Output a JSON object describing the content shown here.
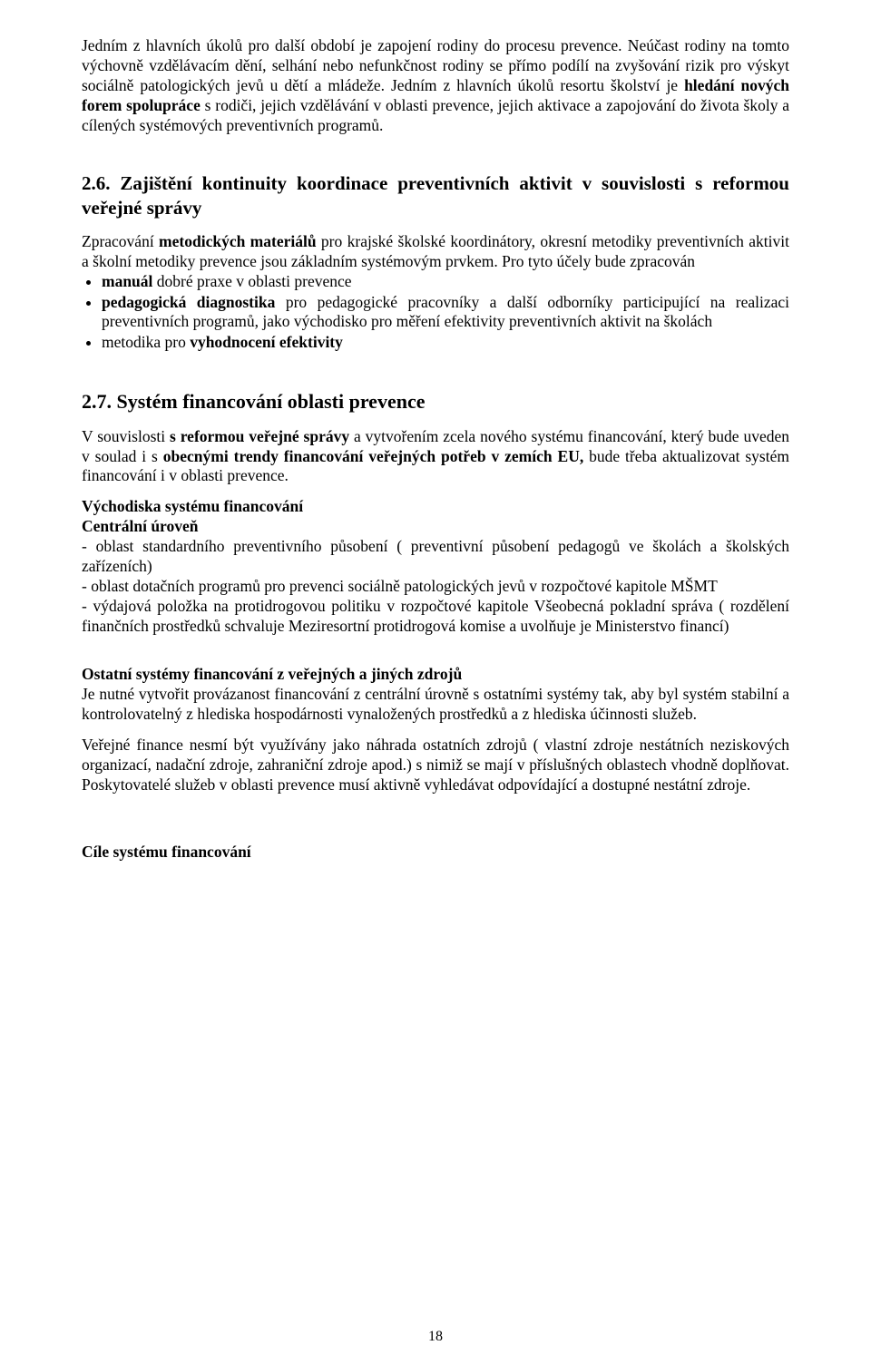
{
  "para1": {
    "run1": "Jedním z hlavních úkolů pro další období je zapojení rodiny do procesu prevence. Neúčast rodiny na tomto výchovně vzdělávacím dění, selhání nebo nefunkčnost rodiny se přímo podílí na zvyšování rizik pro výskyt sociálně patologických jevů u dětí a mládeže. Jedním z hlavních úkolů resortu školství je ",
    "run2_bold": "hledání nových forem spolupráce",
    "run3": " s rodiči,  jejich vzdělávání v oblasti prevence, jejich  aktivace a zapojování do života školy a cílených systémových preventivních programů."
  },
  "sec26": {
    "heading": "2.6. Zajištění kontinuity koordinace preventivních aktivit v souvislosti s reformou veřejné správy",
    "para1_run1": "Zpracování ",
    "para1_run2_bold": "metodických materiálů",
    "para1_run3": " pro krajské školské koordinátory, okresní metodiky preventivních aktivit a školní metodiky prevence jsou základním systémovým prvkem. Pro tyto účely bude zpracován",
    "bullets": [
      {
        "run1_bold": "manuál",
        "run2": " dobré praxe v oblasti prevence"
      },
      {
        "run1_bold": "pedagogická diagnostika",
        "run2": " pro pedagogické pracovníky a další odborníky participující na realizaci preventivních programů, jako východisko pro měření efektivity preventivních aktivit na školách"
      },
      {
        "run1": "metodika pro ",
        "run2_bold": "vyhodnocení efektivity"
      }
    ]
  },
  "sec27": {
    "heading": "2.7. Systém financování oblasti prevence",
    "para1_run1": "V souvislosti ",
    "para1_run2_bold": "s reformou veřejné správy",
    "para1_run3": " a vytvořením zcela nového systému financování, který bude uveden v soulad  i  s ",
    "para1_run4_bold": "obecnými trendy financování veřejných potřeb v zemích EU,",
    "para1_run5": " bude třeba aktualizovat systém financování i v oblasti prevence.",
    "sub1_title": "Východiska systému financování",
    "sub1a_title": "Centrální úroveň",
    "sub1a_item1": "- oblast standardního preventivního působení ( preventivní působení pedagogů ve školách a školských zařízeních)",
    "sub1a_item2": "- oblast dotačních programů pro prevenci sociálně patologických jevů v rozpočtové kapitole MŠMT",
    "sub1a_item3": "- výdajová položka na  protidrogovou politiku v rozpočtové kapitole Všeobecná pokladní správa ( rozdělení finančních prostředků schvaluje Meziresortní protidrogová komise a uvolňuje je Ministerstvo financí)",
    "sub2_title": "Ostatní systémy financování z veřejných a jiných zdrojů",
    "sub2_para1": "Je nutné vytvořit provázanost financování z centrální úrovně s ostatními systémy tak, aby byl systém stabilní a kontrolovatelný z hlediska hospodárnosti vynaložených prostředků a z hlediska účinnosti služeb.",
    "sub2_para2": "Veřejné finance nesmí být využívány jako náhrada ostatních zdrojů ( vlastní zdroje nestátních neziskových organizací, nadační zdroje, zahraniční zdroje apod.) s nimiž se mají v příslušných oblastech vhodně doplňovat. Poskytovatelé služeb v oblasti prevence musí aktivně vyhledávat odpovídající a dostupné nestátní zdroje.",
    "sub3_title": "Cíle systému financování"
  },
  "page_number": "18"
}
